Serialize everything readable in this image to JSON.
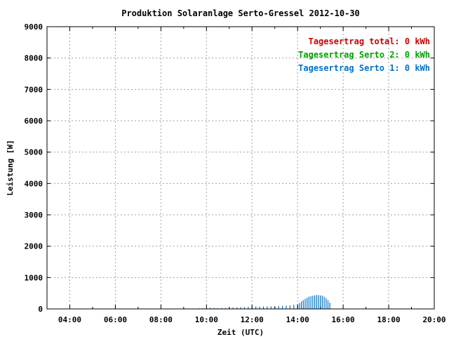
{
  "chart_data": {
    "type": "bar",
    "title": "Produktion Solaranlage Serto-Gressel 2012-10-30",
    "xlabel": "Zeit (UTC)",
    "ylabel": "Leistung [W]",
    "xlim": [
      "03:00",
      "20:00"
    ],
    "ylim": [
      0,
      9000
    ],
    "grid": true,
    "legend_position": "top-right",
    "x_ticks": [
      "04:00",
      "06:00",
      "08:00",
      "10:00",
      "12:00",
      "14:00",
      "16:00",
      "18:00",
      "20:00"
    ],
    "y_ticks": [
      0,
      1000,
      2000,
      3000,
      4000,
      5000,
      6000,
      7000,
      8000,
      9000
    ],
    "legend": [
      {
        "label": "Tagesertrag total:",
        "value": "0 kWh",
        "color": "#cc0000"
      },
      {
        "label": "Tagesertrag Serto 2:",
        "value": "0 kWh",
        "color": "#00a000"
      },
      {
        "label": "Tagesertrag Serto 1:",
        "value": "0 kWh",
        "color": "#0070cc"
      }
    ],
    "series": [
      {
        "color": "#0070cc",
        "x": [
          "09:40",
          "09:50",
          "10:00",
          "10:10",
          "10:20",
          "10:30",
          "10:40",
          "10:50",
          "11:00",
          "11:10",
          "11:20",
          "11:30",
          "11:40",
          "11:50",
          "12:00",
          "12:10",
          "12:20",
          "12:30",
          "12:40",
          "12:50",
          "13:00",
          "13:10",
          "13:20",
          "13:30",
          "13:40",
          "13:50",
          "14:00",
          "14:05",
          "14:10",
          "14:15",
          "14:20",
          "14:25",
          "14:30",
          "14:35",
          "14:40",
          "14:45",
          "14:50",
          "14:55",
          "15:00",
          "15:05",
          "15:10",
          "15:15",
          "15:20",
          "15:25"
        ],
        "values": [
          20,
          25,
          30,
          35,
          30,
          25,
          30,
          35,
          40,
          45,
          50,
          55,
          60,
          65,
          70,
          75,
          75,
          80,
          80,
          85,
          85,
          90,
          95,
          100,
          110,
          130,
          150,
          190,
          240,
          280,
          320,
          360,
          390,
          410,
          420,
          430,
          440,
          440,
          430,
          420,
          390,
          340,
          280,
          200
        ]
      }
    ]
  }
}
